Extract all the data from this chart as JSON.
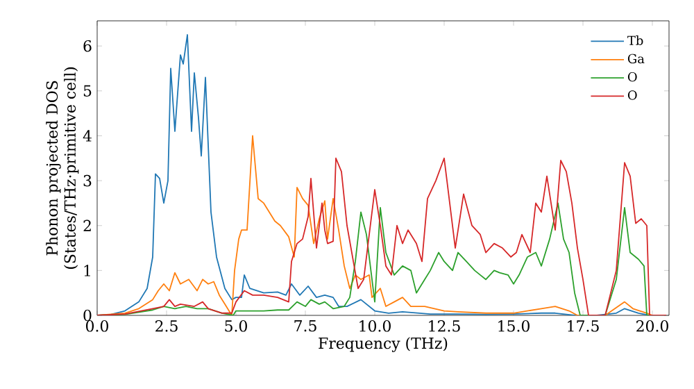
{
  "chart_data": {
    "type": "line",
    "xlabel": "Frequency (THz)",
    "ylabel": "Phonon projected DOS\n(States/THz·primitive cell)",
    "xlim": [
      0,
      20.6
    ],
    "ylim": [
      0,
      6.56
    ],
    "xticks": [
      {
        "value": 0,
        "label": "0.0"
      },
      {
        "value": 2.5,
        "label": "2.5"
      },
      {
        "value": 5,
        "label": "5.0"
      },
      {
        "value": 7.5,
        "label": "7.5"
      },
      {
        "value": 10,
        "label": "10.0"
      },
      {
        "value": 12.5,
        "label": "12.5"
      },
      {
        "value": 15,
        "label": "15.0"
      },
      {
        "value": 17.5,
        "label": "17.5"
      },
      {
        "value": 20,
        "label": "20.0"
      }
    ],
    "yticks": [
      0,
      1,
      2,
      3,
      4,
      5,
      6
    ],
    "legend": "top right",
    "grid": false,
    "marker": "none",
    "line_style": "solid",
    "series": [
      {
        "name": "Tb",
        "color": "#1f77b4",
        "x": [
          0,
          0.5,
          1,
          1.5,
          1.8,
          2.0,
          2.1,
          2.25,
          2.4,
          2.55,
          2.65,
          2.8,
          3.0,
          3.1,
          3.25,
          3.4,
          3.5,
          3.65,
          3.75,
          3.9,
          4.1,
          4.3,
          4.6,
          4.85,
          5.0,
          5.2,
          5.3,
          5.5,
          6.0,
          6.5,
          6.8,
          7.0,
          7.3,
          7.6,
          7.9,
          8.2,
          8.5,
          8.7,
          9.0,
          9.5,
          10.0,
          10.5,
          11,
          12,
          13,
          14,
          15,
          16,
          16.5,
          17.2,
          18,
          18.7,
          19.0,
          19.5,
          19.9,
          20.5
        ],
        "values": [
          0,
          0.02,
          0.1,
          0.3,
          0.6,
          1.3,
          3.15,
          3.05,
          2.5,
          3.0,
          5.5,
          4.1,
          5.8,
          5.6,
          6.25,
          4.1,
          5.4,
          4.4,
          3.55,
          5.3,
          2.3,
          1.3,
          0.6,
          0.35,
          0.4,
          0.4,
          0.9,
          0.6,
          0.5,
          0.52,
          0.45,
          0.7,
          0.45,
          0.65,
          0.4,
          0.45,
          0.4,
          0.2,
          0.2,
          0.35,
          0.1,
          0.05,
          0.08,
          0.03,
          0.03,
          0.02,
          0.03,
          0.05,
          0.05,
          0,
          0,
          0.05,
          0.15,
          0.05,
          0,
          0
        ]
      },
      {
        "name": "Ga",
        "color": "#ff7f0e",
        "x": [
          0,
          1,
          1.5,
          2.0,
          2.2,
          2.4,
          2.6,
          2.8,
          3.0,
          3.3,
          3.6,
          3.8,
          4.0,
          4.2,
          4.4,
          4.6,
          4.85,
          4.95,
          5.1,
          5.2,
          5.4,
          5.6,
          5.8,
          6.0,
          6.4,
          6.6,
          6.9,
          7.1,
          7.2,
          7.4,
          7.6,
          7.8,
          8.0,
          8.2,
          8.3,
          8.5,
          8.7,
          8.9,
          9.1,
          9.3,
          9.5,
          9.8,
          9.9,
          10.2,
          10.4,
          10.7,
          11,
          11.3,
          11.8,
          12.5,
          13,
          14,
          15,
          15.5,
          16,
          16.5,
          17.0,
          17.3,
          18.3,
          19.0,
          19.3,
          19.8,
          20,
          20.5
        ],
        "values": [
          0,
          0.05,
          0.15,
          0.35,
          0.55,
          0.7,
          0.55,
          0.95,
          0.7,
          0.8,
          0.55,
          0.8,
          0.7,
          0.75,
          0.45,
          0.25,
          0,
          1.0,
          1.7,
          1.9,
          1.9,
          4.0,
          2.6,
          2.5,
          2.1,
          2.0,
          1.75,
          1.3,
          2.85,
          2.6,
          2.45,
          1.6,
          2.15,
          2.55,
          1.7,
          2.6,
          1.9,
          1.1,
          0.6,
          0.9,
          0.8,
          0.9,
          0.4,
          0.6,
          0.2,
          0.3,
          0.4,
          0.2,
          0.2,
          0.1,
          0.08,
          0.05,
          0.05,
          0.1,
          0.15,
          0.2,
          0.1,
          0,
          0,
          0.3,
          0.15,
          0.05,
          0,
          0
        ]
      },
      {
        "name": "O",
        "color": "#2ca02c",
        "x": [
          0,
          1,
          2,
          2.4,
          2.8,
          3.2,
          3.6,
          4.0,
          4.5,
          4.9,
          5.0,
          5.5,
          6.0,
          6.5,
          6.9,
          7.2,
          7.5,
          7.7,
          8.0,
          8.2,
          8.5,
          8.9,
          9.1,
          9.3,
          9.5,
          9.7,
          10.0,
          10.2,
          10.4,
          10.7,
          11.0,
          11.3,
          11.5,
          11.8,
          12.0,
          12.3,
          12.5,
          12.8,
          13.0,
          13.3,
          13.6,
          13.8,
          14.0,
          14.3,
          14.5,
          14.8,
          15.0,
          15.2,
          15.5,
          15.8,
          16.0,
          16.3,
          16.6,
          16.8,
          17.0,
          17.2,
          17.4,
          18.3,
          18.7,
          19.0,
          19.2,
          19.5,
          19.7,
          19.8,
          20.5
        ],
        "values": [
          0,
          0.02,
          0.12,
          0.2,
          0.15,
          0.2,
          0.15,
          0.15,
          0.05,
          0,
          0.1,
          0.1,
          0.1,
          0.12,
          0.12,
          0.3,
          0.2,
          0.35,
          0.25,
          0.3,
          0.15,
          0.2,
          0.4,
          1.2,
          2.3,
          1.8,
          0.3,
          2.4,
          1.4,
          0.9,
          1.1,
          1.0,
          0.5,
          0.8,
          1.0,
          1.4,
          1.2,
          1.0,
          1.4,
          1.2,
          1.0,
          0.9,
          0.8,
          1.0,
          0.95,
          0.9,
          0.7,
          0.9,
          1.3,
          1.4,
          1.1,
          1.7,
          2.5,
          1.7,
          1.4,
          0.5,
          0,
          0,
          0.8,
          2.4,
          1.4,
          1.25,
          1.1,
          0,
          0
        ]
      },
      {
        "name": "O",
        "color": "#d62728",
        "x": [
          0,
          1,
          2.0,
          2.4,
          2.6,
          2.8,
          3.0,
          3.5,
          3.8,
          4.0,
          4.5,
          4.85,
          5.0,
          5.3,
          5.6,
          6.0,
          6.5,
          6.9,
          7.0,
          7.2,
          7.4,
          7.6,
          7.7,
          7.9,
          8.1,
          8.2,
          8.3,
          8.5,
          8.6,
          8.8,
          9.0,
          9.2,
          9.4,
          9.6,
          9.8,
          10.0,
          10.2,
          10.4,
          10.6,
          10.8,
          11.0,
          11.2,
          11.5,
          11.7,
          11.9,
          12.2,
          12.5,
          12.7,
          12.9,
          13.2,
          13.5,
          13.8,
          14.0,
          14.3,
          14.6,
          14.9,
          15.1,
          15.3,
          15.6,
          15.8,
          16.0,
          16.2,
          16.5,
          16.7,
          16.9,
          17.1,
          17.3,
          17.5,
          17.7,
          18.3,
          18.7,
          19.0,
          19.2,
          19.4,
          19.6,
          19.8,
          19.9,
          20.5
        ],
        "values": [
          0,
          0.03,
          0.15,
          0.2,
          0.35,
          0.2,
          0.25,
          0.2,
          0.3,
          0.15,
          0.05,
          0.05,
          0.3,
          0.55,
          0.45,
          0.45,
          0.4,
          0.3,
          1.2,
          1.6,
          1.7,
          2.2,
          3.05,
          1.5,
          2.5,
          1.9,
          1.6,
          1.65,
          3.5,
          3.2,
          2.0,
          1.3,
          0.6,
          0.8,
          1.8,
          2.8,
          2.0,
          1.1,
          0.9,
          2.0,
          1.6,
          1.9,
          1.6,
          1.2,
          2.6,
          3.0,
          3.5,
          2.5,
          1.5,
          2.7,
          2.0,
          1.8,
          1.4,
          1.6,
          1.5,
          1.3,
          1.4,
          1.8,
          1.4,
          2.5,
          2.3,
          3.1,
          1.9,
          3.45,
          3.2,
          2.5,
          1.5,
          0.8,
          0,
          0,
          1.0,
          3.4,
          3.1,
          2.05,
          2.15,
          2.0,
          0,
          0
        ]
      }
    ]
  }
}
